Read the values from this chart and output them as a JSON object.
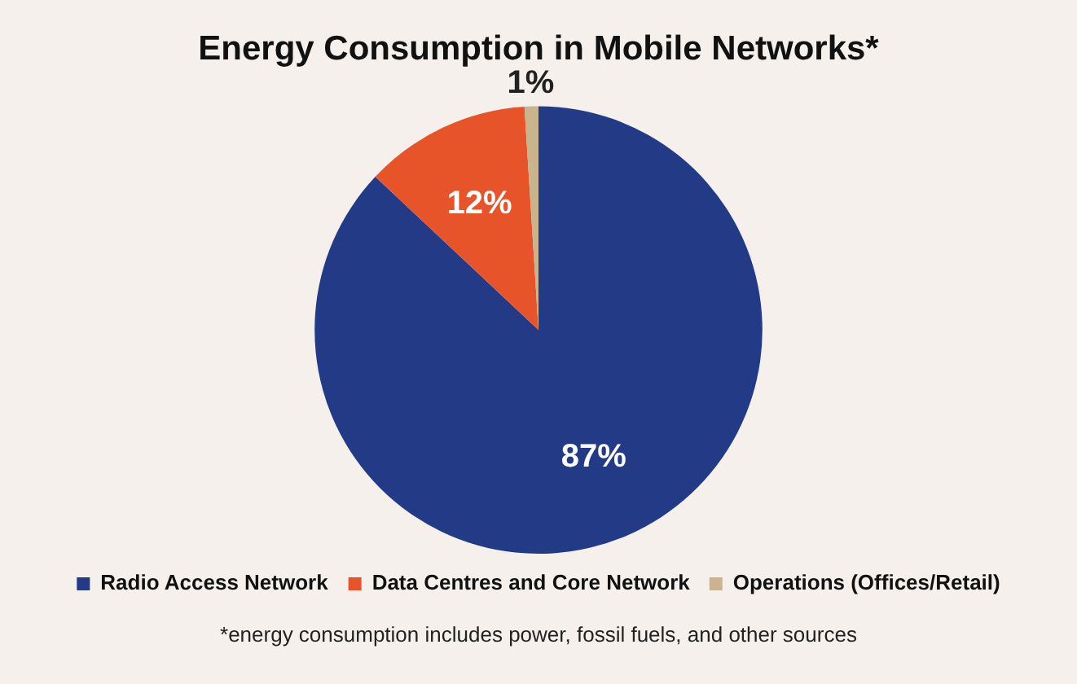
{
  "chart_data": {
    "type": "pie",
    "title": "Energy Consumption in Mobile Networks*",
    "categories": [
      "Radio Access Network",
      "Data Centres and Core Network",
      "Operations (Offices/Retail)"
    ],
    "values": [
      87,
      12,
      1
    ],
    "colors": [
      "#233a86",
      "#e8542a",
      "#c9b48e"
    ],
    "value_labels": [
      "87%",
      "12%",
      "1%"
    ],
    "legend": "bottom",
    "annotations": [
      "*energy consumption includes power, fossil fuels, and other sources"
    ]
  }
}
